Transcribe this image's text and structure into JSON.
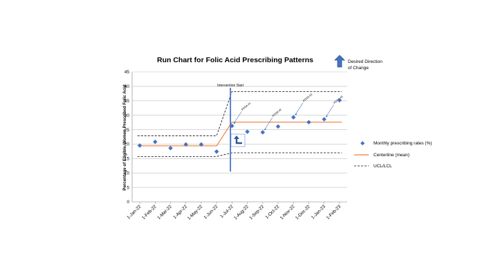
{
  "chart_data": {
    "type": "scatter",
    "title": "Run Chart for Folic Acid Prescribing Patterns",
    "ylabel": "Percentage of Eligible Women Prescribed Folic Acid",
    "xlabel": "",
    "ylim": [
      0,
      45
    ],
    "yticks": [
      0,
      5,
      10,
      15,
      20,
      25,
      30,
      35,
      40,
      45
    ],
    "grid": true,
    "legend_position": "right",
    "categories": [
      "1-Jan-22",
      "1-Feb-22",
      "1-Mar-22",
      "1-Apr-22",
      "1-May-22",
      "1-Jun-22",
      "1-Jul-22",
      "1-Aug-22",
      "1-Sep-22",
      "1-Oct-22",
      "1-Nov-22",
      "1-Dec-22",
      "1-Jan-23",
      "1-Feb-23"
    ],
    "series": [
      {
        "name": "Monthly prescribing rates (%)",
        "kind": "points",
        "color": "#4472C4",
        "x": [
          "1-Jan-22",
          "1-Feb-22",
          "1-Mar-22",
          "1-Apr-22",
          "1-May-22",
          "1-Jun-22",
          "1-Jul-22",
          "1-Aug-22",
          "1-Sep-22",
          "1-Oct-22",
          "1-Nov-22",
          "1-Dec-22",
          "1-Jan-23",
          "1-Feb-23"
        ],
        "values": [
          19.5,
          20.8,
          18.6,
          19.9,
          19.9,
          17.4,
          26.3,
          24.3,
          24.1,
          26.1,
          29.3,
          27.6,
          28.6,
          35.2
        ]
      },
      {
        "name": "Centerline (mean)",
        "kind": "step",
        "color": "#ED7D31",
        "segments": [
          {
            "x_from": "1-Jan-22",
            "x_to": "1-Jun-22",
            "value": 19.4
          },
          {
            "x_from": "1-Jul-22",
            "x_to": "1-Feb-23",
            "value": 27.6
          }
        ]
      },
      {
        "name": "UCL/LCL",
        "kind": "dashed",
        "color": "#000000",
        "ucl": [
          {
            "x_from": "1-Jan-22",
            "x_to": "1-Jun-22",
            "value": 22.9
          },
          {
            "x_from": "1-Jul-22",
            "x_to": "1-Feb-23",
            "value": 38.2
          }
        ],
        "lcl": [
          {
            "x_from": "1-Jan-22",
            "x_to": "1-Jun-22",
            "value": 15.7
          },
          {
            "x_from": "1-Jul-22",
            "x_to": "1-Feb-23",
            "value": 17.0
          }
        ]
      }
    ],
    "annotations": [
      {
        "text": "Intervention Start",
        "x": "1-Jul-22",
        "kind": "vertical-line",
        "color": "#4472C4",
        "y_from": 10.5,
        "y_to": 39.5
      },
      {
        "text": "PDSA #1",
        "x": "1-Jul-22",
        "y": 26.3
      },
      {
        "text": "PDSA #2",
        "x": "1-Sep-22",
        "y": 24.1
      },
      {
        "text": "PDSA #3",
        "x": "1-Nov-22",
        "y": 29.3
      },
      {
        "text": "PDSA #4",
        "x": "1-Jan-23",
        "y": 28.6
      }
    ],
    "direction_label": "Desired Direction of Change",
    "direction_label_lines": [
      "Desired Direction",
      "of Change"
    ]
  }
}
